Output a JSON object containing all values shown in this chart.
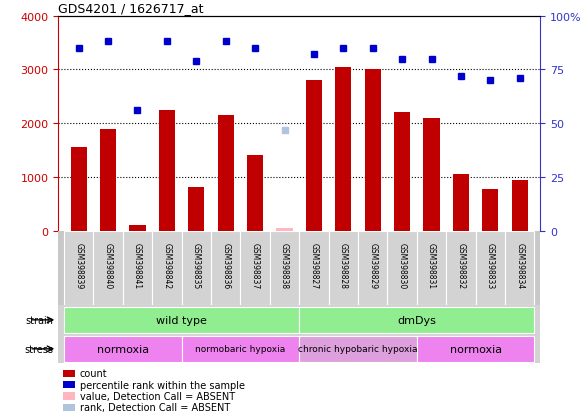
{
  "title": "GDS4201 / 1626717_at",
  "samples": [
    "GSM398839",
    "GSM398840",
    "GSM398841",
    "GSM398842",
    "GSM398835",
    "GSM398836",
    "GSM398837",
    "GSM398838",
    "GSM398827",
    "GSM398828",
    "GSM398829",
    "GSM398830",
    "GSM398831",
    "GSM398832",
    "GSM398833",
    "GSM398834"
  ],
  "counts": [
    1550,
    1900,
    100,
    2250,
    820,
    2150,
    1400,
    60,
    2800,
    3050,
    3000,
    2200,
    2100,
    1050,
    780,
    950
  ],
  "counts_absent": [
    false,
    false,
    false,
    false,
    false,
    false,
    false,
    true,
    false,
    false,
    false,
    false,
    false,
    false,
    false,
    false
  ],
  "percentile_ranks": [
    85,
    88,
    56,
    88,
    79,
    88,
    85,
    47,
    82,
    85,
    85,
    80,
    80,
    72,
    70,
    71
  ],
  "ranks_absent": [
    false,
    false,
    false,
    false,
    false,
    false,
    false,
    true,
    false,
    false,
    false,
    false,
    false,
    false,
    false,
    false
  ],
  "strain_groups": [
    {
      "label": "wild type",
      "start": 0,
      "end": 8,
      "color": "#90EE90"
    },
    {
      "label": "dmDys",
      "start": 8,
      "end": 16,
      "color": "#90EE90"
    }
  ],
  "stress_groups": [
    {
      "label": "normoxia",
      "start": 0,
      "end": 4,
      "color": "#EE82EE"
    },
    {
      "label": "normobaric hypoxia",
      "start": 4,
      "end": 8,
      "color": "#EE82EE"
    },
    {
      "label": "chronic hypobaric hypoxia",
      "start": 8,
      "end": 12,
      "color": "#DDA0DD"
    },
    {
      "label": "normoxia",
      "start": 12,
      "end": 16,
      "color": "#EE82EE"
    }
  ],
  "bar_color": "#C00000",
  "dot_color": "#0000CD",
  "absent_bar_color": "#FFB6C1",
  "absent_dot_color": "#B0C4DE",
  "ylim_left": [
    0,
    4000
  ],
  "ylim_right": [
    0,
    100
  ],
  "yticks_left": [
    0,
    1000,
    2000,
    3000,
    4000
  ],
  "yticks_right": [
    0,
    25,
    50,
    75,
    100
  ],
  "left_tick_color": "#CC0000",
  "right_tick_color": "#3333CC",
  "legend_items": [
    {
      "label": "count",
      "color": "#C00000"
    },
    {
      "label": "percentile rank within the sample",
      "color": "#0000CD"
    },
    {
      "label": "value, Detection Call = ABSENT",
      "color": "#FFB6C1"
    },
    {
      "label": "rank, Detection Call = ABSENT",
      "color": "#B0C4DE"
    }
  ]
}
